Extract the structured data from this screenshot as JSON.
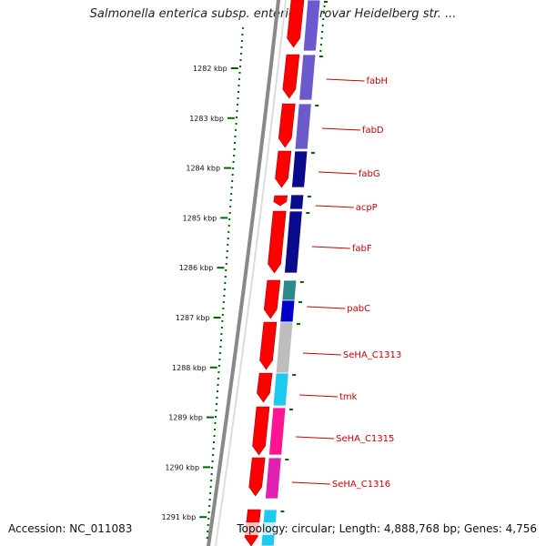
{
  "title": "Salmonella enterica subsp. enterica serovar Heidelberg str. ...",
  "footer": {
    "accession": "Accession: NC_011083",
    "topology": "Topology: circular; Length: 4,888,768 bp; Genes: 4,756"
  },
  "kbp_ticks": [
    "1282 kbp",
    "1283 kbp",
    "1284 kbp",
    "1285 kbp",
    "1286 kbp",
    "1287 kbp",
    "1288 kbp",
    "1289 kbp",
    "1290 kbp",
    "1291 kbp"
  ],
  "genes": [
    "fabH",
    "fabD",
    "fabG",
    "acpP",
    "fabF",
    "pabC",
    "SeHA_C1313",
    "tmk",
    "SeHA_C1315",
    "SeHA_C1316"
  ],
  "colors": {
    "forward_strand": "#ff0000",
    "cog_purple": "#6a5acd",
    "cog_navy": "#0a0a8c",
    "cog_blue": "#0000cc",
    "cog_grey": "#bdbdbd",
    "cog_cyan": "#1ec8ef",
    "cog_pink": "#ff1493",
    "cog_magenta": "#e020b0",
    "tick_green": "#006600",
    "label_red": "#cc0000"
  }
}
